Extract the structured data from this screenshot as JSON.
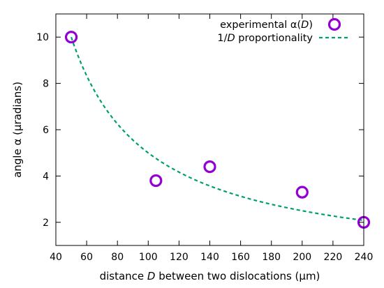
{
  "chart_data": {
    "type": "scatter",
    "xlabel": {
      "before": "distance ",
      "italic": "D",
      "after": " between two dislocations (µm)"
    },
    "ylabel": "angle α (µradians)",
    "xlim": [
      40,
      240
    ],
    "ylim": [
      1.0,
      11.0
    ],
    "xticks": [
      40,
      60,
      80,
      100,
      120,
      140,
      160,
      180,
      200,
      220,
      240
    ],
    "yticks": [
      2,
      4,
      6,
      8,
      10
    ],
    "grid": false,
    "legend_position": "top-right",
    "series": [
      {
        "name": {
          "before": "experimental α(",
          "italic": "D",
          "after": ")"
        },
        "style": "open-circle",
        "color": "#9400d3",
        "x": [
          50,
          105,
          140,
          200,
          240
        ],
        "y": [
          10.0,
          3.8,
          4.4,
          3.3,
          2.0
        ]
      },
      {
        "name": {
          "before": "1/",
          "italic": "D",
          "after": " proportionality"
        },
        "style": "dashed-line",
        "color": "#009e73",
        "function": "500/x",
        "x_range": [
          50,
          240
        ]
      }
    ]
  }
}
